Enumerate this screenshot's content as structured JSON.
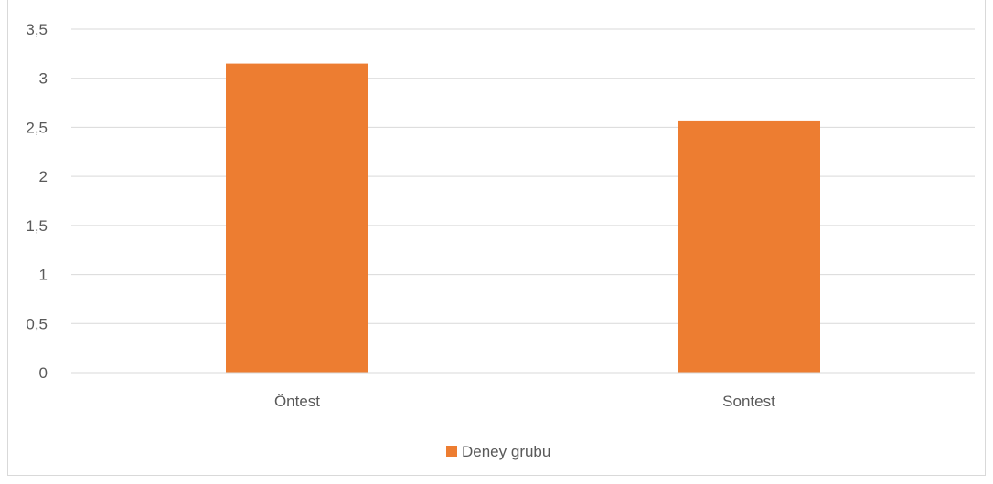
{
  "chart_data": {
    "type": "bar",
    "title": "",
    "xlabel": "",
    "ylabel": "",
    "categories": [
      "Öntest",
      "Sontest"
    ],
    "series": [
      {
        "name": "Deney grubu",
        "values": [
          3.15,
          2.57
        ],
        "color": "#ED7D31"
      }
    ],
    "ylim": [
      0,
      3.5
    ],
    "y_ticks": [
      "0",
      "0,5",
      "1",
      "1,5",
      "2",
      "2,5",
      "3",
      "3,5"
    ],
    "y_tick_values": [
      0,
      0.5,
      1,
      1.5,
      2,
      2.5,
      3,
      3.5
    ],
    "grid": true,
    "gridline_color": "#D9D9D9",
    "axis_text_color": "#595959",
    "legend_position": "bottom"
  }
}
